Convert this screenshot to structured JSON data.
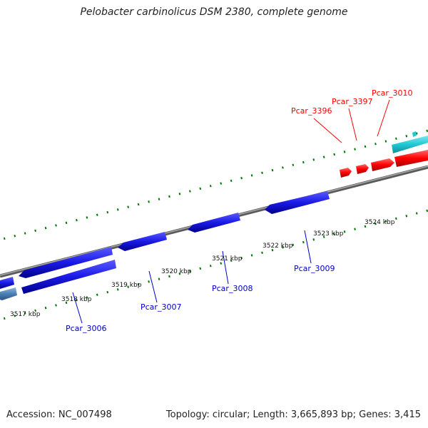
{
  "title": "Pelobacter carbinolicus DSM 2380, complete genome",
  "footer": {
    "accession": "Accession: NC_007498",
    "topology": "Topology: circular; Length: 3,665,893 bp; Genes: 3,415"
  },
  "tick_labels": [
    "3517 kbp",
    "3518 kbp",
    "3519 kbp",
    "3520 kbp",
    "3521 kbp",
    "3522 kbp",
    "3523 kbp",
    "3524 kbp"
  ],
  "genes_forward": [
    {
      "label": "Pcar_3396",
      "color": "#ff0000"
    },
    {
      "label": "Pcar_3397",
      "color": "#ff0000"
    },
    {
      "label": "Pcar_3010",
      "color": "#ff0000"
    }
  ],
  "genes_reverse": [
    {
      "label": "Pcar_3006",
      "color": "#0000cc"
    },
    {
      "label": "Pcar_3007",
      "color": "#0000cc"
    },
    {
      "label": "Pcar_3008",
      "color": "#0000cc"
    },
    {
      "label": "Pcar_3009",
      "color": "#0000cc"
    }
  ],
  "colors": {
    "backbone": "#7a7a7a",
    "tick": "#007700",
    "forward_gene": "#ff0000",
    "reverse_gene": "#1a1ae6",
    "cyan_gene": "#1fc8d4",
    "steel_gene": "#4a7fb5"
  }
}
